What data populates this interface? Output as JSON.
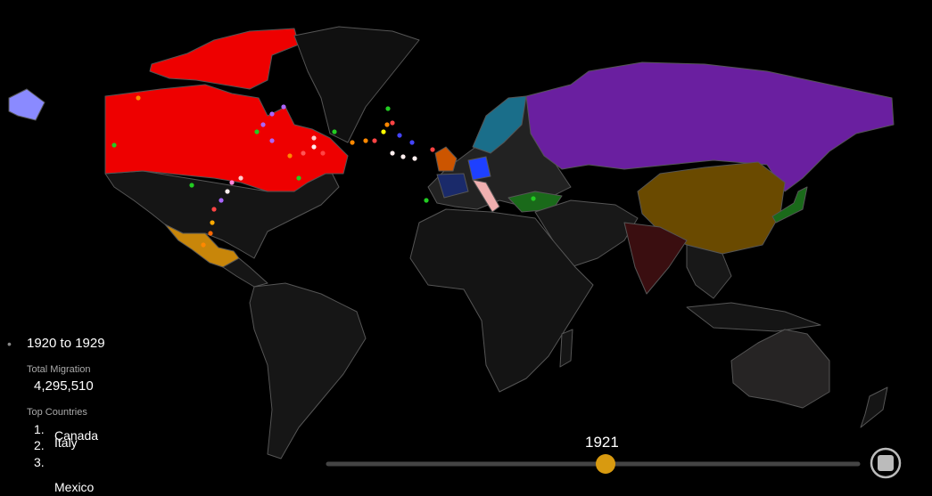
{
  "period": "1920 to 1929",
  "total_migration": {
    "label": "Total Migration",
    "value": "4,295,510"
  },
  "top_countries": {
    "label": "Top Countries",
    "items": [
      {
        "rank": "1.",
        "name": "Canada"
      },
      {
        "rank": "2.",
        "name": "Italy"
      },
      {
        "rank": "3.",
        "name": "Mexico"
      }
    ]
  },
  "slider": {
    "year": "1921"
  }
}
